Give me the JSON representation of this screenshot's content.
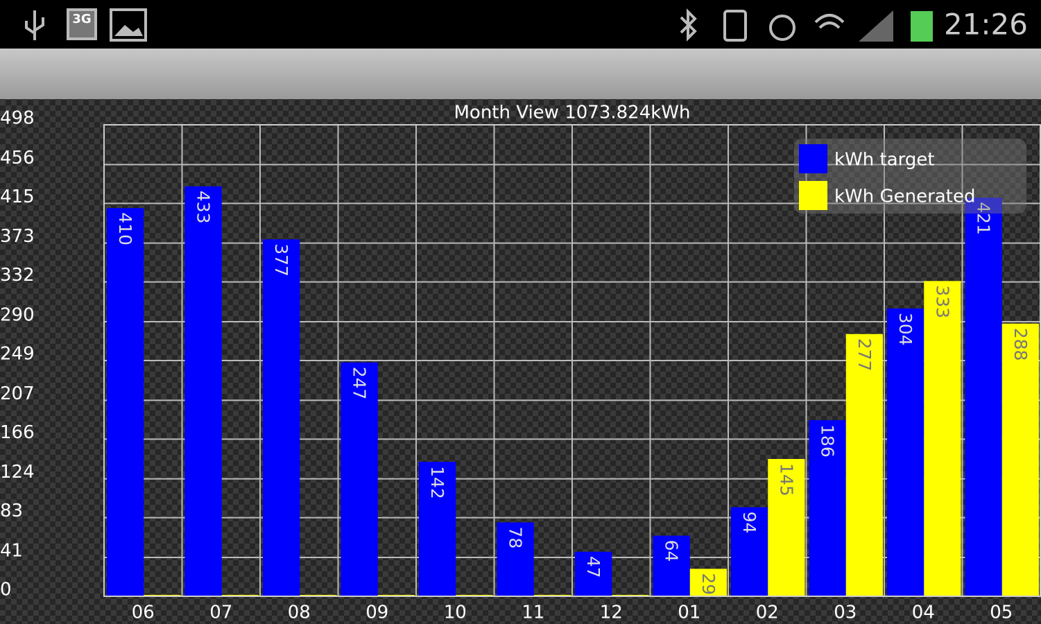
{
  "status_bar": {
    "network": "3G",
    "time": "21:26"
  },
  "chart_data": {
    "type": "bar",
    "title": "Month View 1073.824kWh",
    "categories": [
      "06",
      "07",
      "08",
      "09",
      "10",
      "11",
      "12",
      "01",
      "02",
      "03",
      "04",
      "05"
    ],
    "series": [
      {
        "name": "kWh target",
        "color": "#0000ff",
        "values": [
          410,
          433,
          377,
          247,
          142,
          78,
          47,
          64,
          94,
          186,
          304,
          421
        ]
      },
      {
        "name": "kWh Generated",
        "color": "#ffff00",
        "values": [
          0,
          0,
          0,
          0,
          0,
          0,
          0,
          29,
          145,
          277,
          333,
          288
        ]
      }
    ],
    "ylim": [
      0,
      498
    ],
    "yticks": [
      0,
      41,
      83,
      124,
      166,
      207,
      249,
      290,
      332,
      373,
      415,
      456,
      498
    ],
    "grid": true,
    "legend": "top-right"
  }
}
